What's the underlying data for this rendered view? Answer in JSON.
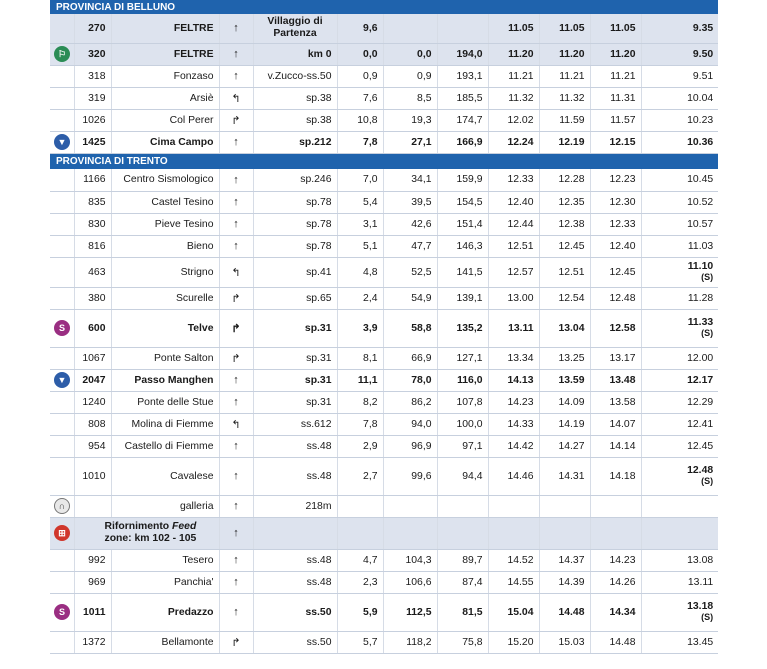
{
  "sections": {
    "belluno": "PROVINCIA DI BELLUNO",
    "trento": "PROVINCIA DI TRENTO"
  },
  "rows": [
    {
      "alt": "270",
      "name": "FELTRE",
      "dir": "↑",
      "road": "Villaggio di Partenza",
      "p1": "9,6",
      "p2": "",
      "p3": "",
      "t1": "11.05",
      "t2": "11.05",
      "t3": "11.05",
      "t4": "9.35",
      "style": "hl",
      "icon": ""
    },
    {
      "alt": "320",
      "name": "FELTRE",
      "dir": "↑",
      "road": "km 0",
      "p1": "0,0",
      "p2": "0,0",
      "p3": "194,0",
      "t1": "11.20",
      "t2": "11.20",
      "t3": "11.20",
      "t4": "9.50",
      "style": "hl",
      "icon": "start"
    },
    {
      "alt": "318",
      "name": "Fonzaso",
      "dir": "↑",
      "road": "v.Zucco-ss.50",
      "p1": "0,9",
      "p2": "0,9",
      "p3": "193,1",
      "t1": "11.21",
      "t2": "11.21",
      "t3": "11.21",
      "t4": "9.51",
      "style": "",
      "icon": ""
    },
    {
      "alt": "319",
      "name": "Arsiè",
      "dir": "↰",
      "road": "sp.38",
      "p1": "7,6",
      "p2": "8,5",
      "p3": "185,5",
      "t1": "11.32",
      "t2": "11.32",
      "t3": "11.31",
      "t4": "10.04",
      "style": "",
      "icon": ""
    },
    {
      "alt": "1026",
      "name": "Col Perer",
      "dir": "↱",
      "road": "sp.38",
      "p1": "10,8",
      "p2": "19,3",
      "p3": "174,7",
      "t1": "12.02",
      "t2": "11.59",
      "t3": "11.57",
      "t4": "10.23",
      "style": "",
      "icon": ""
    },
    {
      "alt": "1425",
      "name": "Cima Campo",
      "dir": "↑",
      "road": "sp.212",
      "p1": "7,8",
      "p2": "27,1",
      "p3": "166,9",
      "t1": "12.24",
      "t2": "12.19",
      "t3": "12.15",
      "t4": "10.36",
      "style": "bold",
      "icon": "gpm"
    },
    {
      "section": "trento"
    },
    {
      "alt": "1166",
      "name": "Centro Sismologico",
      "dir": "↑",
      "road": "sp.246",
      "p1": "7,0",
      "p2": "34,1",
      "p3": "159,9",
      "t1": "12.33",
      "t2": "12.28",
      "t3": "12.23",
      "t4": "10.45",
      "style": "",
      "icon": ""
    },
    {
      "alt": "835",
      "name": "Castel Tesino",
      "dir": "↑",
      "road": "sp.78",
      "p1": "5,4",
      "p2": "39,5",
      "p3": "154,5",
      "t1": "12.40",
      "t2": "12.35",
      "t3": "12.30",
      "t4": "10.52",
      "style": "",
      "icon": ""
    },
    {
      "alt": "830",
      "name": "Pieve Tesino",
      "dir": "↑",
      "road": "sp.78",
      "p1": "3,1",
      "p2": "42,6",
      "p3": "151,4",
      "t1": "12.44",
      "t2": "12.38",
      "t3": "12.33",
      "t4": "10.57",
      "style": "",
      "icon": ""
    },
    {
      "alt": "816",
      "name": "Bieno",
      "dir": "↑",
      "road": "sp.78",
      "p1": "5,1",
      "p2": "47,7",
      "p3": "146,3",
      "t1": "12.51",
      "t2": "12.45",
      "t3": "12.40",
      "t4": "11.03",
      "style": "",
      "icon": ""
    },
    {
      "alt": "463",
      "name": "Strigno",
      "dir": "↰",
      "road": "sp.41",
      "p1": "4,8",
      "p2": "52,5",
      "p3": "141,5",
      "t1": "12.57",
      "t2": "12.51",
      "t3": "12.45",
      "t4": "11.10",
      "t4b": "(S)",
      "style": "",
      "icon": ""
    },
    {
      "alt": "380",
      "name": "Scurelle",
      "dir": "↱",
      "road": "sp.65",
      "p1": "2,4",
      "p2": "54,9",
      "p3": "139,1",
      "t1": "13.00",
      "t2": "12.54",
      "t3": "12.48",
      "t4": "11.28",
      "style": "",
      "icon": ""
    },
    {
      "alt": "600",
      "name": "Telve",
      "dir": "↱",
      "road": "sp.31",
      "p1": "3,9",
      "p2": "58,8",
      "p3": "135,2",
      "t1": "13.11",
      "t2": "13.04",
      "t3": "12.58",
      "t4": "11.33",
      "t4b": "(S)",
      "style": "bold",
      "icon": "sprint"
    },
    {
      "alt": "1067",
      "name": "Ponte Salton",
      "dir": "↱",
      "road": "sp.31",
      "p1": "8,1",
      "p2": "66,9",
      "p3": "127,1",
      "t1": "13.34",
      "t2": "13.25",
      "t3": "13.17",
      "t4": "12.00",
      "style": "",
      "icon": ""
    },
    {
      "alt": "2047",
      "name": "Passo Manghen",
      "dir": "↑",
      "road": "sp.31",
      "p1": "11,1",
      "p2": "78,0",
      "p3": "116,0",
      "t1": "14.13",
      "t2": "13.59",
      "t3": "13.48",
      "t4": "12.17",
      "style": "bold",
      "icon": "gpm"
    },
    {
      "alt": "1240",
      "name": "Ponte delle Stue",
      "dir": "↑",
      "road": "sp.31",
      "p1": "8,2",
      "p2": "86,2",
      "p3": "107,8",
      "t1": "14.23",
      "t2": "14.09",
      "t3": "13.58",
      "t4": "12.29",
      "style": "",
      "icon": ""
    },
    {
      "alt": "808",
      "name": "Molina di Fiemme",
      "dir": "↰",
      "road": "ss.612",
      "p1": "7,8",
      "p2": "94,0",
      "p3": "100,0",
      "t1": "14.33",
      "t2": "14.19",
      "t3": "14.07",
      "t4": "12.41",
      "style": "",
      "icon": ""
    },
    {
      "alt": "954",
      "name": "Castello di Fiemme",
      "dir": "↑",
      "road": "ss.48",
      "p1": "2,9",
      "p2": "96,9",
      "p3": "97,1",
      "t1": "14.42",
      "t2": "14.27",
      "t3": "14.14",
      "t4": "12.45",
      "style": "",
      "icon": ""
    },
    {
      "alt": "1010",
      "name": "Cavalese",
      "dir": "↑",
      "road": "ss.48",
      "p1": "2,7",
      "p2": "99,6",
      "p3": "94,4",
      "t1": "14.46",
      "t2": "14.31",
      "t3": "14.18",
      "t4": "12.48",
      "t4b": "(S)",
      "style": "",
      "icon": "",
      "t4bold": true
    },
    {
      "alt": "",
      "name": "galleria",
      "dir": "↑",
      "road": "218m",
      "p1": "",
      "p2": "",
      "p3": "",
      "t1": "",
      "t2": "",
      "t3": "",
      "t4": "",
      "style": "",
      "icon": "tunnel"
    },
    {
      "feed": true,
      "name1": "Rifornimento ",
      "name2": "Feed",
      "name3": "zone: km 102 - 105",
      "dir": "↑",
      "icon": "feed"
    },
    {
      "alt": "992",
      "name": "Tesero",
      "dir": "↑",
      "road": "ss.48",
      "p1": "4,7",
      "p2": "104,3",
      "p3": "89,7",
      "t1": "14.52",
      "t2": "14.37",
      "t3": "14.23",
      "t4": "13.08",
      "style": "",
      "icon": ""
    },
    {
      "alt": "969",
      "name": "Panchia'",
      "dir": "↑",
      "road": "ss.48",
      "p1": "2,3",
      "p2": "106,6",
      "p3": "87,4",
      "t1": "14.55",
      "t2": "14.39",
      "t3": "14.26",
      "t4": "13.11",
      "style": "",
      "icon": ""
    },
    {
      "alt": "1011",
      "name": "Predazzo",
      "dir": "↑",
      "road": "ss.50",
      "p1": "5,9",
      "p2": "112,5",
      "p3": "81,5",
      "t1": "15.04",
      "t2": "14.48",
      "t3": "14.34",
      "t4": "13.18",
      "t4b": "(S)",
      "style": "bold",
      "icon": "sprint"
    },
    {
      "alt": "1372",
      "name": "Bellamonte",
      "dir": "↱",
      "road": "ss.50",
      "p1": "5,7",
      "p2": "118,2",
      "p3": "75,8",
      "t1": "15.20",
      "t2": "15.03",
      "t3": "14.48",
      "t4": "13.45",
      "style": "",
      "icon": ""
    }
  ]
}
